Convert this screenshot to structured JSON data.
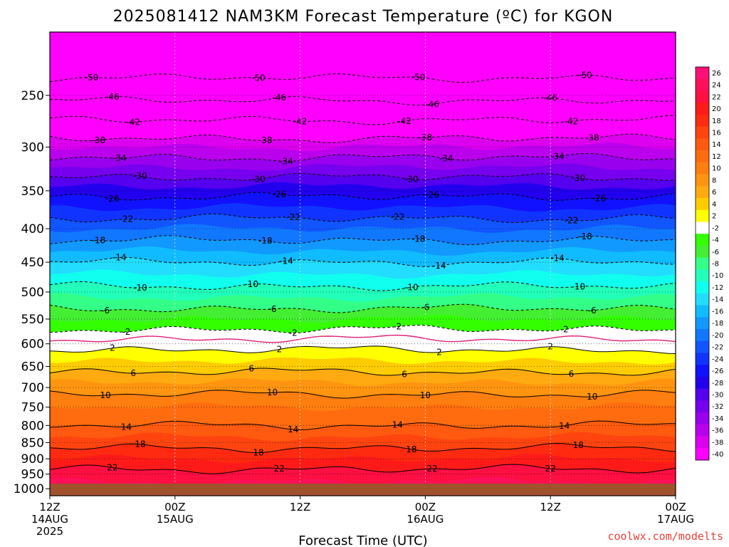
{
  "chart_data": {
    "type": "heatmap",
    "title": "2025081412 NAM3KM Forecast Temperature (ºC) for KGON",
    "xlabel": "Forecast Time (UTC)",
    "ylabel": "",
    "credit": "coolwx.com/modelts",
    "x_ticks": [
      {
        "hours": 0,
        "line1": "12Z",
        "line2": "14AUG",
        "line3": "2025"
      },
      {
        "hours": 12,
        "line1": "00Z",
        "line2": "15AUG",
        "line3": ""
      },
      {
        "hours": 24,
        "line1": "12Z",
        "line2": "",
        "line3": ""
      },
      {
        "hours": 36,
        "line1": "00Z",
        "line2": "16AUG",
        "line3": ""
      },
      {
        "hours": 48,
        "line1": "12Z",
        "line2": "",
        "line3": ""
      },
      {
        "hours": 60,
        "line1": "00Z",
        "line2": "17AUG",
        "line3": ""
      }
    ],
    "xlim_hours": [
      0,
      60
    ],
    "y_ticks": [
      250,
      300,
      350,
      400,
      450,
      500,
      550,
      600,
      650,
      700,
      750,
      800,
      850,
      900,
      950,
      1000
    ],
    "ylim_hPa": [
      1025,
      200
    ],
    "y_scale": "log pressure",
    "colorbar": {
      "unit": "ºC",
      "labels": [
        26,
        24,
        22,
        20,
        18,
        16,
        14,
        12,
        10,
        8,
        6,
        4,
        2,
        -2,
        -4,
        -6,
        -8,
        -10,
        -12,
        -14,
        -16,
        -18,
        -20,
        -22,
        -24,
        -26,
        -28,
        -30,
        -32,
        -34,
        -36,
        -38,
        -40
      ]
    },
    "palette": [
      {
        "min": 26,
        "color": "#ff1077"
      },
      {
        "min": 24,
        "color": "#ff0f5a"
      },
      {
        "min": 22,
        "color": "#ff0f42"
      },
      {
        "min": 20,
        "color": "#ff1a1a"
      },
      {
        "min": 18,
        "color": "#ff2a10"
      },
      {
        "min": 16,
        "color": "#ff4410"
      },
      {
        "min": 14,
        "color": "#ff5a10"
      },
      {
        "min": 12,
        "color": "#ff6c10"
      },
      {
        "min": 10,
        "color": "#ff7e10"
      },
      {
        "min": 8,
        "color": "#ff9410"
      },
      {
        "min": 6,
        "color": "#ffaa10"
      },
      {
        "min": 4,
        "color": "#ffcc00"
      },
      {
        "min": 2,
        "color": "#ffff00"
      },
      {
        "min": -2,
        "color": "#ffffff"
      },
      {
        "min": -4,
        "color": "#33ff00"
      },
      {
        "min": -6,
        "color": "#44ee33"
      },
      {
        "min": -8,
        "color": "#33ff88"
      },
      {
        "min": -10,
        "color": "#22ffbb"
      },
      {
        "min": -12,
        "color": "#11ffee"
      },
      {
        "min": -14,
        "color": "#22ddff"
      },
      {
        "min": -16,
        "color": "#11bbff"
      },
      {
        "min": -18,
        "color": "#1199ff"
      },
      {
        "min": -20,
        "color": "#1177ff"
      },
      {
        "min": -22,
        "color": "#1155ff"
      },
      {
        "min": -24,
        "color": "#1133ff"
      },
      {
        "min": -26,
        "color": "#1111ff"
      },
      {
        "min": -28,
        "color": "#2200ee"
      },
      {
        "min": -30,
        "color": "#5500ee"
      },
      {
        "min": -32,
        "color": "#7700ee"
      },
      {
        "min": -34,
        "color": "#9900ee"
      },
      {
        "min": -36,
        "color": "#bb00ee"
      },
      {
        "min": -38,
        "color": "#dd00ee"
      },
      {
        "min": -40,
        "color": "#ff00ff"
      },
      {
        "min": -99,
        "color": "#ff00ff"
      }
    ],
    "ground_color": "#a0522d",
    "freezing_line_color": "#e0207a",
    "profile_hPa_tempC": [
      [
        200,
        -57
      ],
      [
        250,
        -47
      ],
      [
        300,
        -36
      ],
      [
        350,
        -27
      ],
      [
        400,
        -20
      ],
      [
        450,
        -14
      ],
      [
        500,
        -9
      ],
      [
        550,
        -4
      ],
      [
        600,
        1
      ],
      [
        650,
        5
      ],
      [
        700,
        9
      ],
      [
        750,
        12
      ],
      [
        800,
        14
      ],
      [
        850,
        17
      ],
      [
        900,
        20
      ],
      [
        950,
        23
      ],
      [
        1000,
        25
      ],
      [
        1025,
        26
      ]
    ],
    "contours": [
      {
        "value": -50,
        "dashed": true,
        "label": "-50"
      },
      {
        "value": -46,
        "dashed": true,
        "label": "-46"
      },
      {
        "value": -42,
        "dashed": true,
        "label": "-42"
      },
      {
        "value": -38,
        "dashed": true,
        "label": "-38"
      },
      {
        "value": -34,
        "dashed": true,
        "label": "-34"
      },
      {
        "value": -30,
        "dashed": true,
        "label": "-30"
      },
      {
        "value": -26,
        "dashed": true,
        "label": "-26"
      },
      {
        "value": -22,
        "dashed": true,
        "label": "-22"
      },
      {
        "value": -18,
        "dashed": true,
        "label": "-18"
      },
      {
        "value": -14,
        "dashed": true,
        "label": "-14"
      },
      {
        "value": -10,
        "dashed": true,
        "label": "-10"
      },
      {
        "value": -6,
        "dashed": true,
        "label": "-6"
      },
      {
        "value": -2,
        "dashed": true,
        "label": "-2"
      },
      {
        "value": 0,
        "dashed": false,
        "label": ""
      },
      {
        "value": 2,
        "dashed": false,
        "label": "2"
      },
      {
        "value": 6,
        "dashed": false,
        "label": "6"
      },
      {
        "value": 10,
        "dashed": false,
        "label": "10"
      },
      {
        "value": 14,
        "dashed": false,
        "label": "14"
      },
      {
        "value": 18,
        "dashed": false,
        "label": "18"
      },
      {
        "value": 22,
        "dashed": false,
        "label": "22"
      }
    ]
  }
}
